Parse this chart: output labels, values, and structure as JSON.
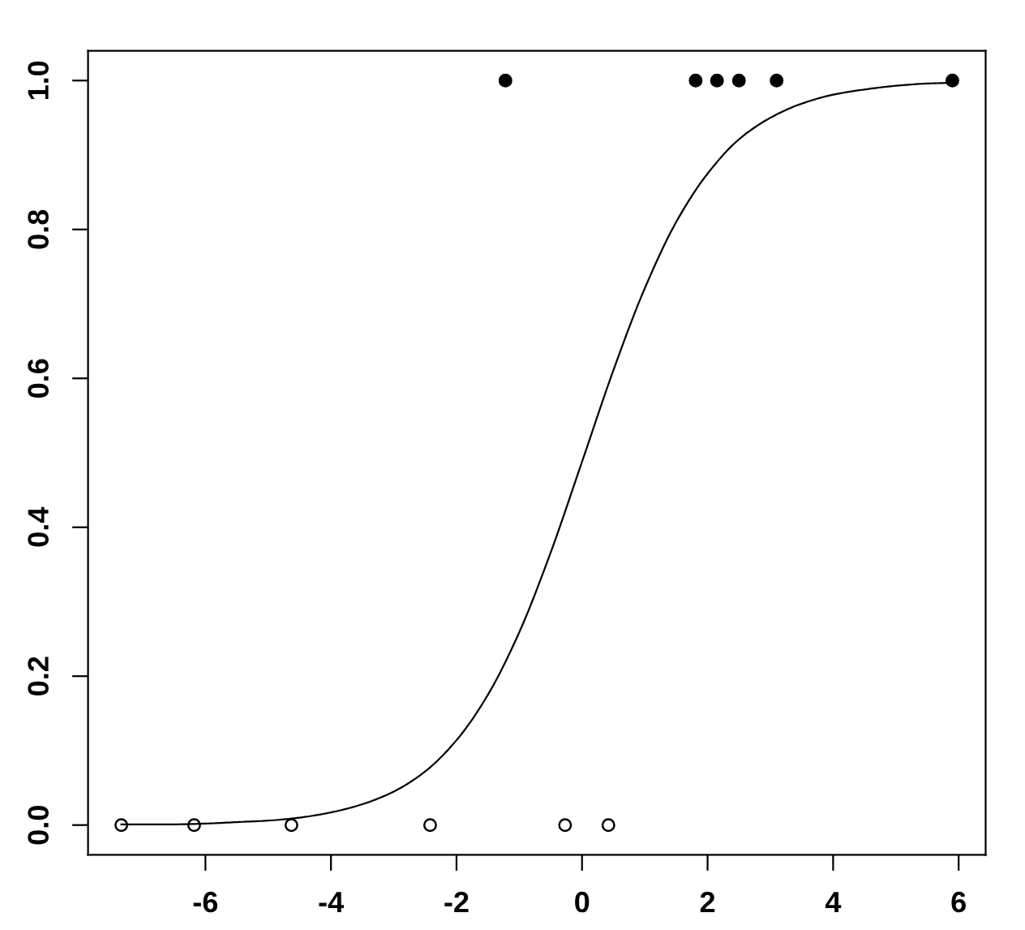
{
  "chart_data": {
    "type": "scatter",
    "xlim": [
      -7.87,
      6.43
    ],
    "ylim": [
      -0.04,
      1.04
    ],
    "xticks": [
      -6,
      -4,
      -2,
      0,
      2,
      4,
      6
    ],
    "yticks": [
      {
        "value": 0,
        "label": "0.0"
      },
      {
        "value": 0.2,
        "label": "0.2"
      },
      {
        "value": 0.4,
        "label": "0.4"
      },
      {
        "value": 0.6,
        "label": "0.6"
      },
      {
        "value": 0.8,
        "label": "0.8"
      },
      {
        "value": 1,
        "label": "1.0"
      }
    ],
    "marker": "circle",
    "series": [
      {
        "color": "#000000",
        "x": [
          -7.34,
          -6.18,
          -4.63,
          -2.42,
          -0.27,
          0.42
        ],
        "values": [
          0,
          0,
          0,
          0,
          0,
          0
        ]
      },
      {
        "color": "#000000",
        "x": [
          -1.22,
          1.81,
          2.15,
          2.5,
          3.1,
          5.9
        ],
        "values": [
          1,
          1,
          1,
          1,
          1,
          1
        ]
      },
      {
        "type": "line",
        "color": "#000000",
        "marker": "none",
        "line_style": "solid",
        "x": [
          -7.34,
          -6.5,
          -6,
          -5.5,
          -5,
          -4.5,
          -4,
          -3.5,
          -3,
          -2.5,
          -2,
          -1.5,
          -1,
          -0.5,
          0,
          0.5,
          1,
          1.5,
          2,
          2.5,
          3,
          3.5,
          4,
          4.5,
          5,
          5.5,
          5.9
        ],
        "values": [
          0.001,
          0.001,
          0.002,
          0.004,
          0.006,
          0.01,
          0.017,
          0.028,
          0.045,
          0.072,
          0.114,
          0.175,
          0.259,
          0.366,
          0.488,
          0.611,
          0.721,
          0.81,
          0.875,
          0.921,
          0.95,
          0.969,
          0.981,
          0.988,
          0.993,
          0.996,
          0.997
        ]
      }
    ]
  }
}
